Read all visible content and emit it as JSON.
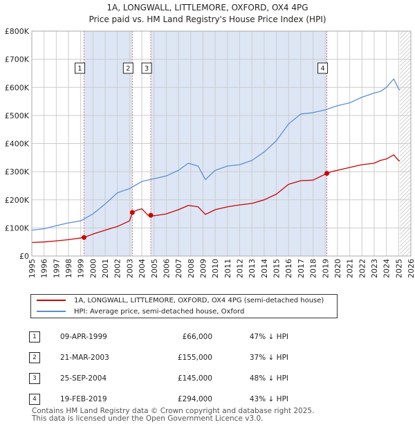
{
  "title_line1": "1A, LONGWALL, LITTLEMORE, OXFORD, OX4 4PG",
  "title_line2": "Price paid vs. HM Land Registry's House Price Index (HPI)",
  "colors": {
    "price": "#cc0000",
    "hpi": "#5b8fd0",
    "shade": "#dde6f5",
    "grid": "#cccccc",
    "vline": "#e06666"
  },
  "legend": {
    "price_label": "1A, LONGWALL, LITTLEMORE, OXFORD, OX4 4PG (semi-detached house)",
    "hpi_label": "HPI: Average price, semi-detached house, Oxford"
  },
  "sales": [
    {
      "num": "1",
      "date": "09-APR-1999",
      "price": "£66,000",
      "hpi": "47% ↓ HPI"
    },
    {
      "num": "2",
      "date": "21-MAR-2003",
      "price": "£155,000",
      "hpi": "37% ↓ HPI"
    },
    {
      "num": "3",
      "date": "25-SEP-2004",
      "price": "£145,000",
      "hpi": "48% ↓ HPI"
    },
    {
      "num": "4",
      "date": "19-FEB-2019",
      "price": "£294,000",
      "hpi": "43% ↓ HPI"
    }
  ],
  "footer_line1": "Contains HM Land Registry data © Crown copyright and database right 2025.",
  "footer_line2": "This data is licensed under the Open Government Licence v3.0.",
  "chart_data": {
    "type": "line",
    "title": "1A, LONGWALL, LITTLEMORE, OXFORD, OX4 4PG",
    "subtitle": "Price paid vs. HM Land Registry's House Price Index (HPI)",
    "xlabel": "",
    "ylabel": "",
    "xlim": [
      1995,
      2026
    ],
    "ylim": [
      0,
      800000
    ],
    "y_ticks": [
      {
        "value": 0,
        "label": "£0"
      },
      {
        "value": 100000,
        "label": "£100K"
      },
      {
        "value": 200000,
        "label": "£200K"
      },
      {
        "value": 300000,
        "label": "£300K"
      },
      {
        "value": 400000,
        "label": "£400K"
      },
      {
        "value": 500000,
        "label": "£500K"
      },
      {
        "value": 600000,
        "label": "£600K"
      },
      {
        "value": 700000,
        "label": "£700K"
      },
      {
        "value": 800000,
        "label": "£800K"
      }
    ],
    "x_ticks": [
      "1995",
      "1996",
      "1997",
      "1998",
      "1999",
      "2000",
      "2001",
      "2002",
      "2003",
      "2004",
      "2005",
      "2006",
      "2007",
      "2008",
      "2009",
      "2010",
      "2011",
      "2012",
      "2013",
      "2014",
      "2015",
      "2016",
      "2017",
      "2018",
      "2019",
      "2020",
      "2021",
      "2022",
      "2023",
      "2024",
      "2025",
      "2026"
    ],
    "grid": true,
    "shaded_periods": [
      [
        1999.27,
        2003.22
      ],
      [
        2004.73,
        2019.13
      ]
    ],
    "forecast_from": 2025.1,
    "markers": [
      {
        "label": "1",
        "x": 1999.27,
        "y": 66000
      },
      {
        "label": "2",
        "x": 2003.22,
        "y": 155000
      },
      {
        "label": "3",
        "x": 2004.73,
        "y": 145000
      },
      {
        "label": "4",
        "x": 2019.13,
        "y": 294000
      }
    ],
    "series": [
      {
        "name": "1A, LONGWALL, LITTLEMORE, OXFORD, OX4 4PG (semi-detached house)",
        "x": [
          1995,
          1996,
          1997,
          1998,
          1999.27,
          2000,
          2001,
          2002,
          2003,
          2003.22,
          2003.6,
          2004,
          2004.5,
          2004.73,
          2005,
          2006,
          2007,
          2007.8,
          2008.6,
          2009.2,
          2010,
          2011,
          2012,
          2013,
          2014,
          2015,
          2016,
          2017,
          2018,
          2019.13,
          2019.5,
          2020,
          2021,
          2022,
          2023,
          2023.5,
          2024,
          2024.6,
          2025,
          2025.1
        ],
        "values": [
          48000,
          50000,
          54000,
          58000,
          66000,
          78000,
          92000,
          105000,
          125000,
          155000,
          163000,
          168000,
          145000,
          145000,
          143000,
          150000,
          165000,
          180000,
          175000,
          148000,
          165000,
          175000,
          182000,
          187000,
          200000,
          220000,
          255000,
          268000,
          270000,
          294000,
          300000,
          305000,
          315000,
          325000,
          330000,
          340000,
          345000,
          360000,
          340000,
          338000
        ]
      },
      {
        "name": "HPI: Average price, semi-detached house, Oxford",
        "x": [
          1995,
          1996,
          1997,
          1998,
          1999,
          2000,
          2001,
          2002,
          2003,
          2004,
          2005,
          2006,
          2007,
          2007.8,
          2008.6,
          2009.2,
          2010,
          2011,
          2012,
          2013,
          2014,
          2015,
          2016,
          2017,
          2018,
          2019,
          2020,
          2021,
          2022,
          2023,
          2023.5,
          2024,
          2024.6,
          2025,
          2025.1
        ],
        "values": [
          92000,
          97000,
          108000,
          118000,
          125000,
          150000,
          185000,
          225000,
          240000,
          265000,
          275000,
          285000,
          305000,
          330000,
          320000,
          272000,
          305000,
          320000,
          325000,
          340000,
          370000,
          410000,
          470000,
          505000,
          510000,
          520000,
          535000,
          545000,
          565000,
          580000,
          585000,
          600000,
          630000,
          595000,
          590000
        ]
      }
    ]
  }
}
